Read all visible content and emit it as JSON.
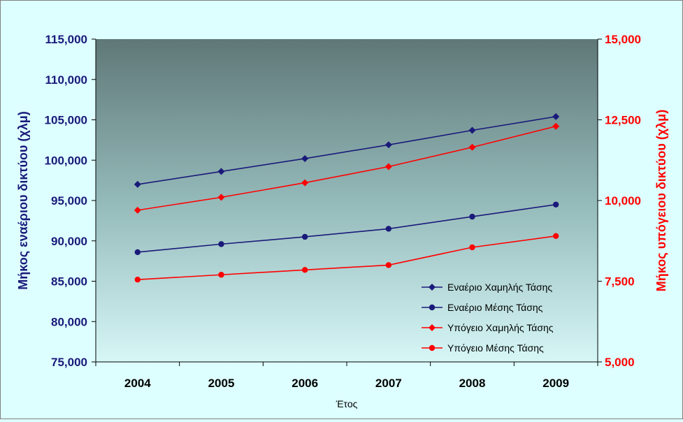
{
  "chart_data": {
    "type": "line",
    "categories": [
      "2004",
      "2005",
      "2006",
      "2007",
      "2008",
      "2009"
    ],
    "xlabel": "Έτος",
    "ylabel_left": "Μήκος εναέριου δικτύου (χλμ)",
    "ylabel_right": "Μήκος υπόγειου δικτύου (χλμ)",
    "ylim_left": [
      75000,
      115000
    ],
    "ylim_right": [
      5000,
      15000
    ],
    "yticks_left": [
      "75,000",
      "80,000",
      "85,000",
      "90,000",
      "95,000",
      "100,000",
      "105,000",
      "110,000",
      "115,000"
    ],
    "yticks_right": [
      "5,000",
      "7,500",
      "10,000",
      "12,500",
      "15,000"
    ],
    "legend_position": "bottom-right inside plot",
    "series": [
      {
        "name": "Εναέριο Χαμηλής Τάσης",
        "axis": "left",
        "marker": "diamond",
        "color": "#1a1a7a",
        "values": [
          97000,
          98600,
          100200,
          101900,
          103700,
          105400
        ]
      },
      {
        "name": "Εναέριο Μέσης Τάσης",
        "axis": "left",
        "marker": "circle",
        "color": "#1a1a7a",
        "values": [
          88600,
          89600,
          90500,
          91500,
          93000,
          94500
        ]
      },
      {
        "name": "Υπόγειο Χαμηλής Τάσης",
        "axis": "right",
        "marker": "diamond",
        "color": "#ff0000",
        "values": [
          9700,
          10100,
          10550,
          11050,
          11650,
          12300
        ]
      },
      {
        "name": "Υπόγειο Μέσης Τάσης",
        "axis": "right",
        "marker": "circle",
        "color": "#ff0000",
        "values": [
          7550,
          7700,
          7850,
          8000,
          8550,
          8900
        ]
      }
    ]
  }
}
